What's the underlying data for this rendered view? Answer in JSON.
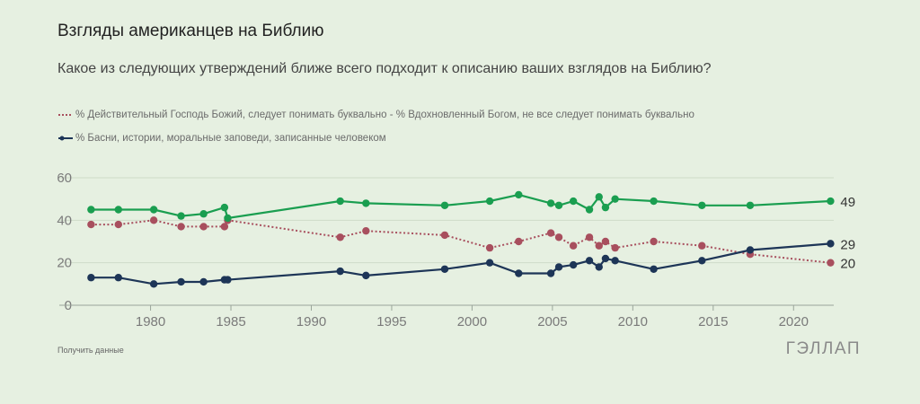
{
  "header": {
    "title": "Взгляды американцев на Библию",
    "subtitle": "Какое из следующих утверждений ближе всего подходит к описанию ваших взглядов на Библию?"
  },
  "footer": {
    "data_link": "Получить данные",
    "brand": "ГЭЛЛАП"
  },
  "chart_data": {
    "type": "line",
    "xlim": [
      1976,
      2022.5
    ],
    "ylim": [
      0,
      60
    ],
    "x_ticks": [
      1980,
      1985,
      1990,
      1995,
      2000,
      2005,
      2010,
      2015,
      2020
    ],
    "y_ticks": [
      0,
      20,
      40,
      60
    ],
    "grid": true,
    "legend_position": "top-left",
    "series": [
      {
        "name": "% Действительный Господь Божий, следует понимать буквально",
        "color": "#a84f5e",
        "style": "dotted",
        "points": [
          [
            1976.3,
            38
          ],
          [
            1978,
            38
          ],
          [
            1980.2,
            40
          ],
          [
            1981.9,
            37
          ],
          [
            1983.3,
            37
          ],
          [
            1984.6,
            37
          ],
          [
            1984.8,
            40
          ],
          [
            1991.8,
            32
          ],
          [
            1993.4,
            35
          ],
          [
            1998.3,
            33
          ],
          [
            2001.1,
            27
          ],
          [
            2002.9,
            30
          ],
          [
            2004.9,
            34
          ],
          [
            2005.4,
            32
          ],
          [
            2006.3,
            28
          ],
          [
            2007.3,
            32
          ],
          [
            2007.9,
            28
          ],
          [
            2008.3,
            30
          ],
          [
            2008.9,
            27
          ],
          [
            2011.3,
            30
          ],
          [
            2014.3,
            28
          ],
          [
            2017.3,
            24
          ],
          [
            2022.3,
            20
          ]
        ],
        "end_label": "20"
      },
      {
        "name": "% Вдохновленный Богом, не все следует понимать буквально",
        "color": "#1a9e50",
        "style": "solid",
        "points": [
          [
            1976.3,
            45
          ],
          [
            1978,
            45
          ],
          [
            1980.2,
            45
          ],
          [
            1981.9,
            42
          ],
          [
            1983.3,
            43
          ],
          [
            1984.6,
            46
          ],
          [
            1984.8,
            41
          ],
          [
            1991.8,
            49
          ],
          [
            1993.4,
            48
          ],
          [
            1998.3,
            47
          ],
          [
            2001.1,
            49
          ],
          [
            2002.9,
            52
          ],
          [
            2004.9,
            48
          ],
          [
            2005.4,
            47
          ],
          [
            2006.3,
            49
          ],
          [
            2007.3,
            45
          ],
          [
            2007.9,
            51
          ],
          [
            2008.3,
            46
          ],
          [
            2008.9,
            50
          ],
          [
            2011.3,
            49
          ],
          [
            2014.3,
            47
          ],
          [
            2017.3,
            47
          ],
          [
            2022.3,
            49
          ]
        ],
        "end_label": "49"
      },
      {
        "name": "% Басни, истории, моральные заповеди, записанные человеком",
        "color": "#1d3557",
        "style": "solid",
        "points": [
          [
            1976.3,
            13
          ],
          [
            1978,
            13
          ],
          [
            1980.2,
            10
          ],
          [
            1981.9,
            11
          ],
          [
            1983.3,
            11
          ],
          [
            1984.6,
            12
          ],
          [
            1984.8,
            12
          ],
          [
            1991.8,
            16
          ],
          [
            1993.4,
            14
          ],
          [
            1998.3,
            17
          ],
          [
            2001.1,
            20
          ],
          [
            2002.9,
            15
          ],
          [
            2004.9,
            15
          ],
          [
            2005.4,
            18
          ],
          [
            2006.3,
            19
          ],
          [
            2007.3,
            21
          ],
          [
            2007.9,
            18
          ],
          [
            2008.3,
            22
          ],
          [
            2008.9,
            21
          ],
          [
            2011.3,
            17
          ],
          [
            2014.3,
            21
          ],
          [
            2017.3,
            26
          ],
          [
            2022.3,
            29
          ]
        ],
        "end_label": "29"
      }
    ]
  }
}
